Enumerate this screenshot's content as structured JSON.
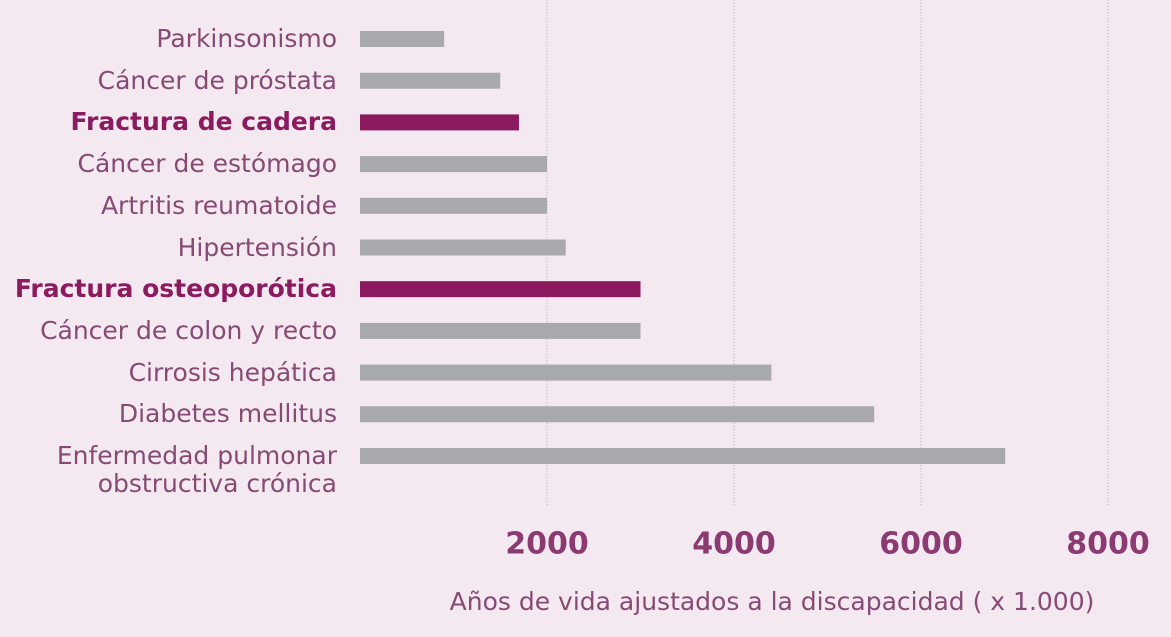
{
  "chart_data": {
    "type": "bar",
    "orientation": "horizontal",
    "x_label": "Años de vida ajustados a la discapacidad ( x 1.000)",
    "categories": [
      "Parkinsonismo",
      "Cáncer de próstata",
      "Fractura de cadera",
      "Cáncer de estómago",
      "Artritis reumatoide",
      "Hipertensión",
      "Fractura osteoporótica",
      "Cáncer de colon y recto",
      "Cirrosis hepática",
      "Diabetes mellitus",
      "Enfermedad pulmonar\nobstructiva crónica"
    ],
    "values": [
      900,
      1500,
      1700,
      2000,
      2000,
      2200,
      3000,
      3000,
      4400,
      5500,
      6900
    ],
    "colors": [
      "#a7a9ac",
      "#a7a9ac",
      "#8b1a5e",
      "#a7a9ac",
      "#a7a9ac",
      "#a7a9ac",
      "#8b1a5e",
      "#a7a9ac",
      "#a7a9ac",
      "#a7a9ac",
      "#a7a9ac"
    ],
    "highlight_color": "#8b1a5e",
    "xlim": [
      0,
      8000
    ],
    "xticks": [
      2000,
      4000,
      6000,
      8000
    ],
    "grid": true
  }
}
